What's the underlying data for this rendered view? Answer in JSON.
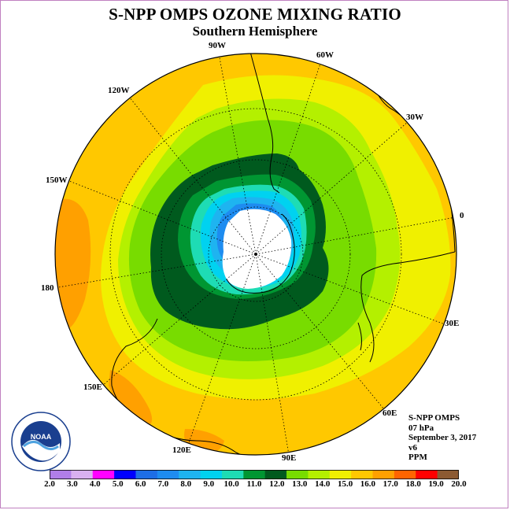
{
  "header": {
    "title": "S-NPP OMPS OZONE MIXING RATIO",
    "subtitle": "Southern Hemisphere"
  },
  "longitude_labels": [
    {
      "text": "90W"
    },
    {
      "text": "60W"
    },
    {
      "text": "120W"
    },
    {
      "text": "30W"
    },
    {
      "text": "150W"
    },
    {
      "text": "0"
    },
    {
      "text": "180"
    },
    {
      "text": "30E"
    },
    {
      "text": "150E"
    },
    {
      "text": "60E"
    },
    {
      "text": "120E"
    },
    {
      "text": "90E"
    }
  ],
  "info": {
    "instrument": "S-NPP OMPS",
    "level": "07 hPa",
    "date": "September 3, 2017",
    "version": "v6",
    "units": "PPM"
  },
  "logo": {
    "text": "NOAA",
    "ring_text": "NATIONAL OCEANIC AND ATMOSPHERIC ADMINISTRATION · U.S. DEPARTMENT OF COMMERCE"
  },
  "colorbar": {
    "ticks": [
      "2.0",
      "3.0",
      "4.0",
      "5.0",
      "6.0",
      "7.0",
      "8.0",
      "9.0",
      "10.0",
      "11.0",
      "12.0",
      "13.0",
      "14.0",
      "15.0",
      "16.0",
      "17.0",
      "18.0",
      "19.0",
      "20.0"
    ],
    "colors": [
      "#b07ee8",
      "#d9b0f0",
      "#ff00ff",
      "#0000ff",
      "#1e6ee6",
      "#1e8cf0",
      "#1eb4f0",
      "#00d2f0",
      "#1edcb4",
      "#009632",
      "#005a1e",
      "#78dc00",
      "#b4f000",
      "#f0f000",
      "#ffc800",
      "#ffa000",
      "#ff6400",
      "#ff0000",
      "#8c5a32"
    ]
  },
  "map": {
    "icon": "polar-stereographic-map",
    "field_colors": {
      "hole": "#ffffff",
      "band_9": "#00d2f0",
      "band_8": "#1eb4f0",
      "band_7": "#1e8cf0",
      "band_10": "#1edcb4",
      "band_11": "#009632",
      "band_12": "#005a1e",
      "band_13": "#78dc00",
      "band_14": "#b4f000",
      "band_15": "#f0f000",
      "band_16": "#ffc800",
      "band_17": "#ffa000"
    }
  }
}
